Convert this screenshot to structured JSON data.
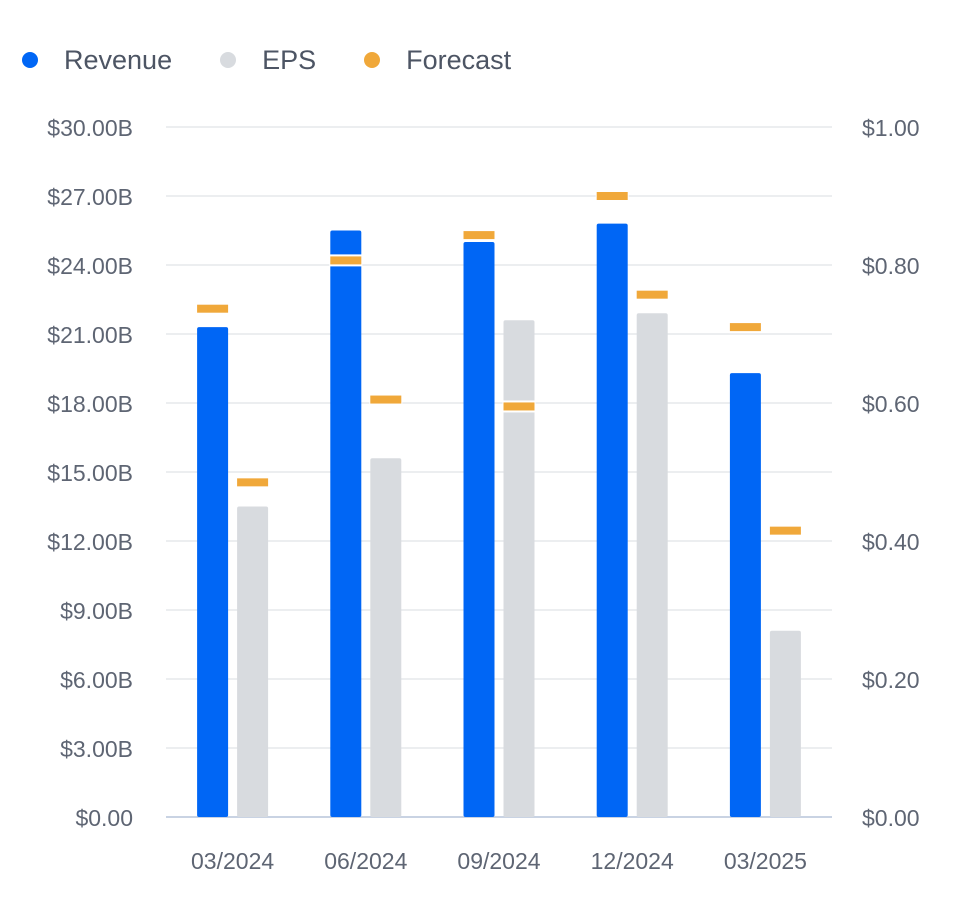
{
  "legend": [
    {
      "label": "Revenue",
      "color": "#0066f5"
    },
    {
      "label": "EPS",
      "color": "#d8dbdf"
    },
    {
      "label": "Forecast",
      "color": "#f0a83a"
    }
  ],
  "chart_data": {
    "type": "bar",
    "categories": [
      "03/2024",
      "06/2024",
      "09/2024",
      "12/2024",
      "03/2025"
    ],
    "series": [
      {
        "name": "Revenue",
        "axis": "left",
        "color": "#0066f5",
        "values": [
          21.3,
          25.5,
          25.0,
          25.8,
          19.3
        ]
      },
      {
        "name": "EPS",
        "axis": "right",
        "color": "#d8dbdf",
        "values": [
          0.45,
          0.52,
          0.72,
          0.73,
          0.27
        ]
      }
    ],
    "forecast": {
      "name": "Forecast",
      "color": "#f0a83a",
      "revenue": [
        22.1,
        24.2,
        25.3,
        27.0,
        21.3
      ],
      "eps": [
        0.485,
        0.605,
        0.595,
        0.757,
        0.415
      ]
    },
    "y_left": {
      "min": 0,
      "max": 30,
      "ticks": [
        "$0.00",
        "$3.00B",
        "$6.00B",
        "$9.00B",
        "$12.00B",
        "$15.00B",
        "$18.00B",
        "$21.00B",
        "$24.00B",
        "$27.00B",
        "$30.00B"
      ]
    },
    "y_right": {
      "min": 0,
      "max": 1.0,
      "ticks": [
        "$0.00",
        "$0.20",
        "$0.40",
        "$0.60",
        "$0.80",
        "$1.00"
      ]
    },
    "grid": true,
    "legend_position": "top-left"
  }
}
